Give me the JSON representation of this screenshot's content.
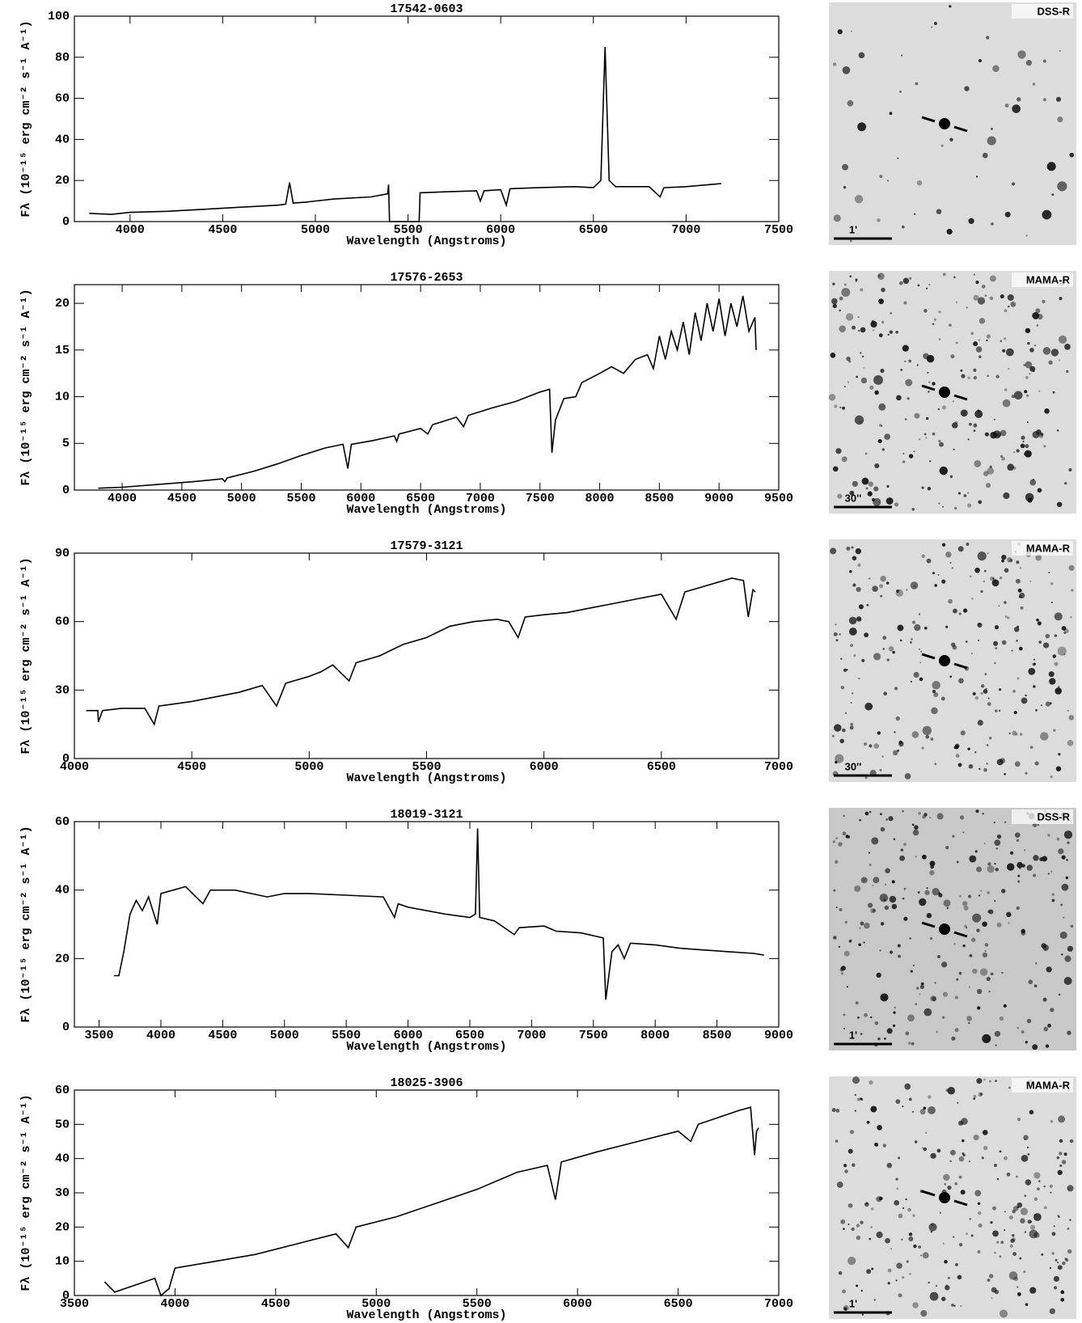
{
  "chart_data": [
    {
      "type": "line",
      "title": "17542-0603",
      "xlabel": "Wavelength (Angstroms)",
      "ylabel": "Fλ (10⁻¹⁵ erg cm⁻² s⁻¹ A⁻¹)",
      "color": "#000000",
      "xlim": [
        3700,
        7500
      ],
      "xticks": [
        4000,
        4500,
        5000,
        5500,
        6000,
        6500,
        7000,
        7500
      ],
      "ylim": [
        0,
        100
      ],
      "yticks": [
        0,
        20,
        40,
        60,
        80,
        100
      ],
      "x": [
        3780,
        3900,
        4000,
        4200,
        4400,
        4600,
        4800,
        4840,
        4861,
        4880,
        4950,
        5100,
        5300,
        5390,
        5395,
        5400,
        5560,
        5565,
        5700,
        5870,
        5890,
        5910,
        6000,
        6030,
        6050,
        6200,
        6400,
        6500,
        6540,
        6563,
        6585,
        6620,
        6800,
        6860,
        6880,
        7000,
        7190
      ],
      "values": [
        4,
        3.5,
        4.5,
        5,
        6,
        7,
        8,
        8.5,
        19,
        9,
        9.5,
        11,
        12,
        13.5,
        18,
        0,
        0,
        14,
        14.5,
        15,
        10,
        15,
        15.5,
        8,
        16,
        16.5,
        17,
        16.5,
        20,
        85,
        20,
        17,
        17,
        12,
        16.5,
        17,
        18.5
      ]
    },
    {
      "type": "line",
      "title": "17576-2653",
      "xlabel": "Wavelength (Angstroms)",
      "ylabel": "Fλ (10⁻¹⁵ erg cm⁻² s⁻¹ A⁻¹)",
      "color": "#000000",
      "xlim": [
        3600,
        9500
      ],
      "xticks": [
        4000,
        4500,
        5000,
        5500,
        6000,
        6500,
        7000,
        7500,
        8000,
        8500,
        9000,
        9500
      ],
      "ylim": [
        0,
        22
      ],
      "yticks": [
        0,
        5,
        10,
        15,
        20
      ],
      "x": [
        3800,
        4000,
        4300,
        4600,
        4840,
        4860,
        4880,
        5100,
        5300,
        5500,
        5700,
        5850,
        5890,
        5920,
        6100,
        6280,
        6300,
        6320,
        6500,
        6560,
        6600,
        6800,
        6860,
        6900,
        7100,
        7300,
        7500,
        7580,
        7600,
        7630,
        7700,
        7800,
        7850,
        8000,
        8100,
        8200,
        8300,
        8400,
        8450,
        8500,
        8550,
        8600,
        8650,
        8700,
        8750,
        8800,
        8850,
        8900,
        8950,
        9000,
        9050,
        9100,
        9150,
        9200,
        9250,
        9300,
        9310
      ],
      "values": [
        0.2,
        0.3,
        0.6,
        0.9,
        1.2,
        0.9,
        1.3,
        2,
        2.8,
        3.7,
        4.5,
        4.9,
        2.3,
        4.9,
        5.3,
        5.8,
        5.2,
        6,
        6.6,
        6,
        7,
        7.8,
        6.8,
        8,
        8.8,
        9.5,
        10.5,
        10.8,
        4,
        7.5,
        9.8,
        10,
        11.5,
        12.5,
        13.2,
        12.5,
        14,
        14.5,
        13,
        16.5,
        14,
        17,
        15,
        18,
        14.5,
        19,
        16,
        20,
        17,
        20.5,
        16.5,
        20,
        17.5,
        20.8,
        17,
        18.5,
        15
      ]
    },
    {
      "type": "line",
      "title": "17579-3121",
      "xlabel": "Wavelength (Angstroms)",
      "ylabel": "Fλ (10⁻¹⁵ erg cm⁻² s⁻¹ A⁻¹)",
      "color": "#000000",
      "xlim": [
        4000,
        7000
      ],
      "xticks": [
        4000,
        4500,
        5000,
        5500,
        6000,
        6500,
        7000
      ],
      "ylim": [
        0,
        90
      ],
      "yticks": [
        0,
        30,
        60,
        90
      ],
      "x": [
        4050,
        4100,
        4102,
        4120,
        4200,
        4300,
        4340,
        4360,
        4500,
        4600,
        4700,
        4800,
        4861,
        4900,
        5000,
        5050,
        5100,
        5170,
        5200,
        5300,
        5400,
        5500,
        5600,
        5700,
        5800,
        5850,
        5890,
        5920,
        6000,
        6100,
        6200,
        6300,
        6400,
        6500,
        6563,
        6600,
        6700,
        6800,
        6850,
        6870,
        6890,
        6900
      ],
      "values": [
        21,
        21,
        16,
        21,
        22,
        22,
        15,
        23,
        25,
        27,
        29,
        32,
        23,
        33,
        36,
        38,
        41,
        34,
        42,
        45,
        50,
        53,
        58,
        60,
        61,
        60,
        53,
        62,
        63,
        64,
        66,
        68,
        70,
        72,
        61,
        73,
        76,
        79,
        78,
        62,
        74,
        73
      ]
    },
    {
      "type": "line",
      "title": "18019-3121",
      "xlabel": "Wavelength (Angstroms)",
      "ylabel": "Fλ (10⁻¹⁵ erg cm⁻² s⁻¹ A⁻¹)",
      "color": "#000000",
      "xlim": [
        3300,
        9000
      ],
      "xticks": [
        3500,
        4000,
        4500,
        5000,
        5500,
        6000,
        6500,
        7000,
        7500,
        8000,
        8500,
        9000
      ],
      "ylim": [
        0,
        60
      ],
      "yticks": [
        0,
        20,
        40,
        60
      ],
      "x": [
        3620,
        3660,
        3700,
        3750,
        3800,
        3850,
        3900,
        3970,
        4000,
        4100,
        4200,
        4340,
        4400,
        4600,
        4861,
        5000,
        5200,
        5500,
        5800,
        5890,
        5920,
        6000,
        6300,
        6500,
        6545,
        6563,
        6580,
        6700,
        6860,
        6900,
        7100,
        7200,
        7400,
        7580,
        7600,
        7650,
        7700,
        7750,
        7800,
        8000,
        8200,
        8400,
        8600,
        8800,
        8880
      ],
      "values": [
        15,
        15,
        22,
        33,
        37,
        34,
        38,
        30,
        39,
        40,
        41,
        36,
        40,
        40,
        38,
        39,
        39,
        38.5,
        38,
        32,
        36,
        35,
        33,
        32,
        33,
        58,
        32,
        31,
        27,
        29,
        29.5,
        28,
        27.5,
        26,
        8,
        22,
        24,
        20,
        24.5,
        24,
        23,
        22.5,
        22,
        21.5,
        21
      ]
    },
    {
      "type": "line",
      "title": "18025-3906",
      "xlabel": "Wavelength (Angstroms)",
      "ylabel": "Fλ (10⁻¹⁵ erg cm⁻² s⁻¹ A⁻¹)",
      "color": "#000000",
      "xlim": [
        3500,
        7000
      ],
      "xticks": [
        3500,
        4000,
        4500,
        5000,
        5500,
        6000,
        6500,
        7000
      ],
      "ylim": [
        0,
        60
      ],
      "yticks": [
        0,
        10,
        20,
        30,
        40,
        50,
        60
      ],
      "x": [
        3650,
        3700,
        3800,
        3900,
        3930,
        3970,
        4000,
        4200,
        4400,
        4600,
        4800,
        4861,
        4900,
        5100,
        5300,
        5500,
        5700,
        5850,
        5890,
        5920,
        6100,
        6300,
        6500,
        6563,
        6600,
        6800,
        6860,
        6880,
        6890,
        6900
      ],
      "values": [
        4,
        1,
        3,
        5,
        0,
        2,
        8,
        10,
        12,
        15,
        18,
        14,
        20,
        23,
        27,
        31,
        36,
        38,
        28,
        39,
        42,
        45,
        48,
        45,
        50,
        54,
        55,
        41,
        48,
        49
      ]
    }
  ],
  "images": [
    {
      "survey": "DSS-R",
      "scale": "1'"
    },
    {
      "survey": "MAMA-R",
      "scale": "30''"
    },
    {
      "survey": "MAMA-R",
      "scale": "30''"
    },
    {
      "survey": "DSS-R",
      "scale": "1'"
    },
    {
      "survey": "MAMA-R",
      "scale": "1'"
    }
  ]
}
